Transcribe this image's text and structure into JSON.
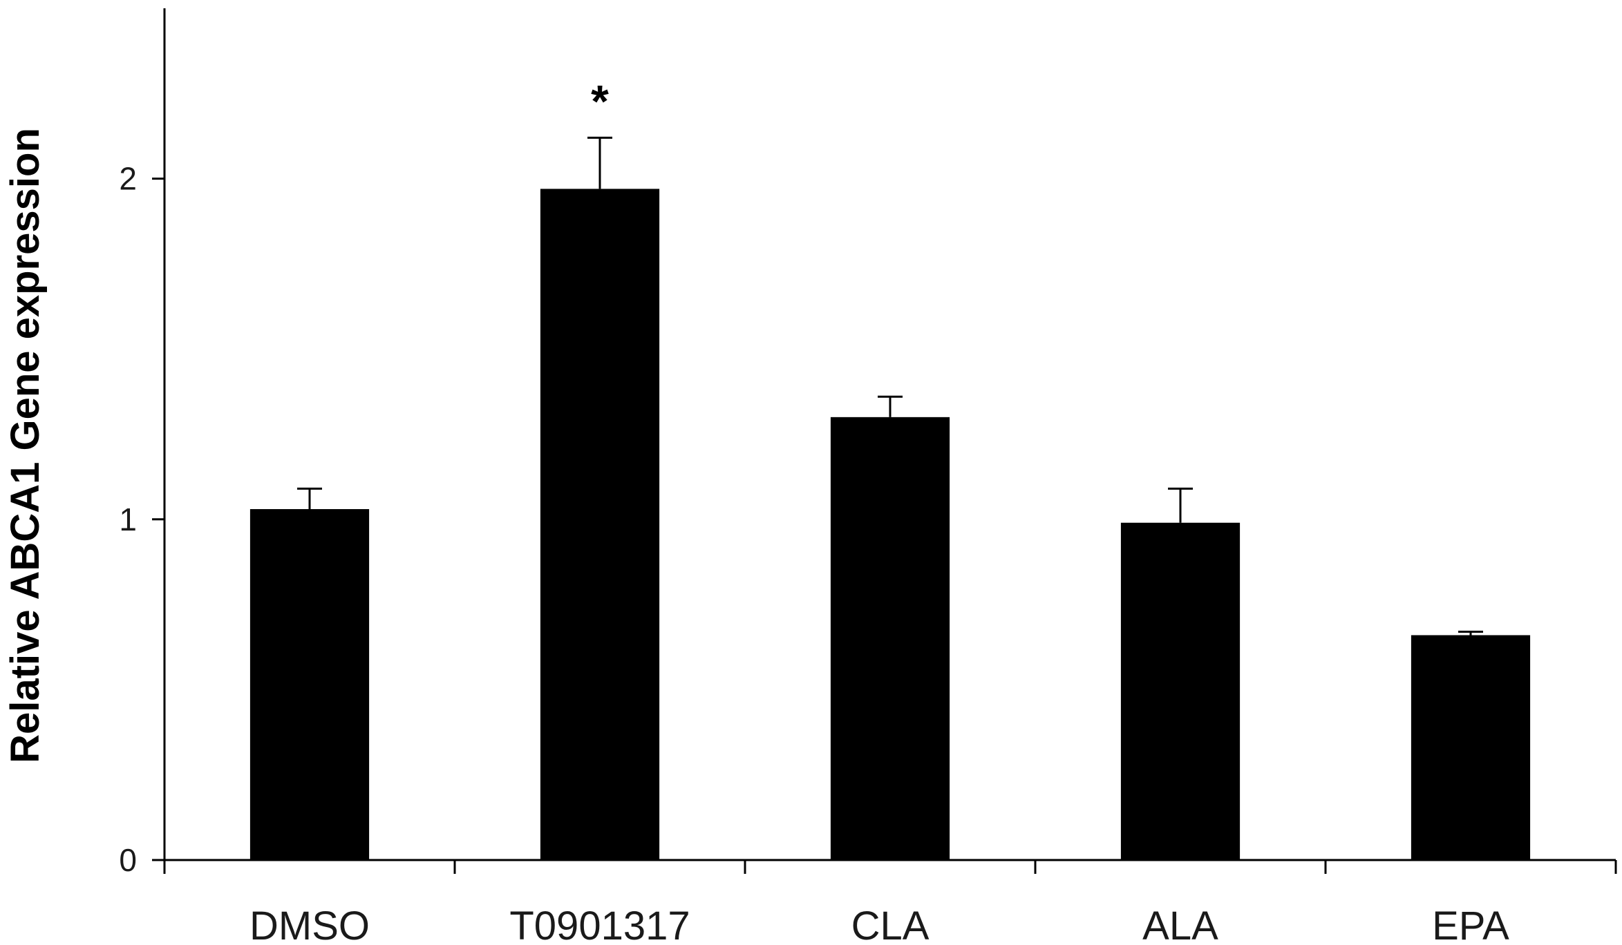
{
  "chart_data": {
    "type": "bar",
    "title": "",
    "xlabel": "",
    "ylabel": "Relative ABCA1  Gene  expression",
    "categories": [
      "DMSO",
      "T0901317",
      "CLA",
      "ALA",
      "EPA"
    ],
    "values": [
      1.03,
      1.97,
      1.3,
      0.99,
      0.66
    ],
    "errors": [
      0.06,
      0.15,
      0.06,
      0.1,
      0.01
    ],
    "annotations": [
      "",
      "*",
      "",
      "",
      ""
    ],
    "ylim": [
      0,
      2.5
    ],
    "yticks": [
      0,
      1,
      2
    ],
    "grid": false,
    "bar_color": "#000000"
  }
}
